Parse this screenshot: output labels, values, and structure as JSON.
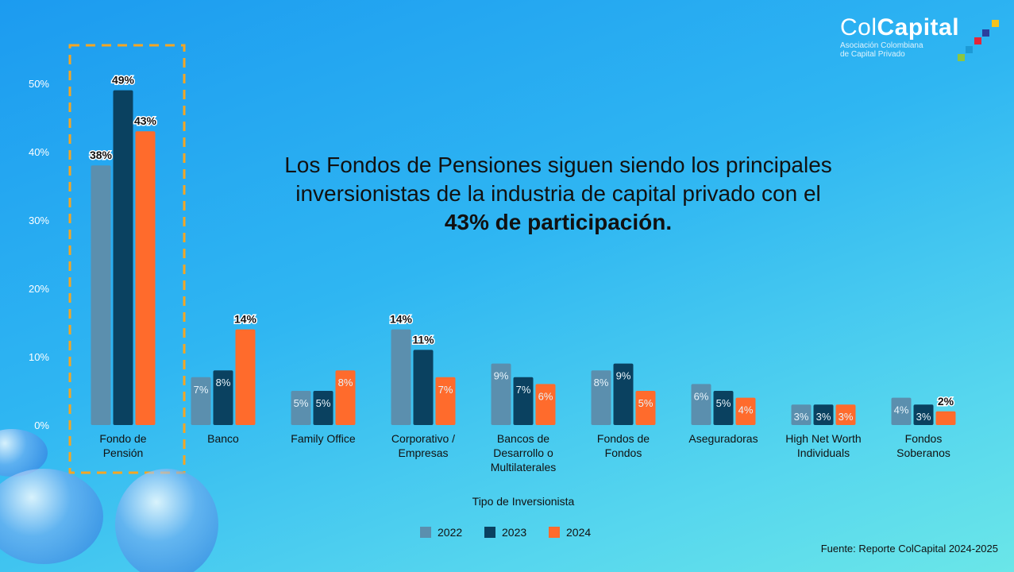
{
  "headline": {
    "line1": "Los Fondos de Pensiones siguen siendo los principales",
    "line2": "inversionistas de la industria de capital privado con el",
    "line3_bold": "43% de participación."
  },
  "logo": {
    "name_light": "Col",
    "name_bold": "Capital",
    "subtitle_line1": "Asociación Colombiana",
    "subtitle_line2": "de Capital Privado"
  },
  "source": "Fuente: Reporte ColCapital 2024-2025",
  "chart_data": {
    "type": "bar",
    "xlabel": "Tipo de Inversionista",
    "ylabel": "",
    "ylim": [
      0,
      50
    ],
    "yticks": [
      "0%",
      "10%",
      "20%",
      "30%",
      "40%",
      "50%"
    ],
    "grid": false,
    "legend_position": "bottom",
    "highlight_category": "Fondo de Pensión",
    "categories": [
      [
        "Fondo de",
        "Pensión"
      ],
      [
        "Banco"
      ],
      [
        "Family Office"
      ],
      [
        "Corporativo /",
        "Empresas"
      ],
      [
        "Bancos de",
        "Desarrollo o",
        "Multilaterales"
      ],
      [
        "Fondos de",
        "Fondos"
      ],
      [
        "Aseguradoras"
      ],
      [
        "High Net Worth",
        "Individuals"
      ],
      [
        "Fondos",
        "Soberanos"
      ]
    ],
    "series": [
      {
        "name": "2022",
        "color": "#5b8fae",
        "values": [
          38,
          7,
          5,
          14,
          9,
          8,
          6,
          3,
          4
        ]
      },
      {
        "name": "2023",
        "color": "#0a4160",
        "values": [
          49,
          8,
          5,
          11,
          7,
          9,
          5,
          3,
          3
        ]
      },
      {
        "name": "2024",
        "color": "#ff6b2c",
        "values": [
          43,
          14,
          8,
          7,
          6,
          5,
          4,
          3,
          2
        ]
      }
    ]
  }
}
